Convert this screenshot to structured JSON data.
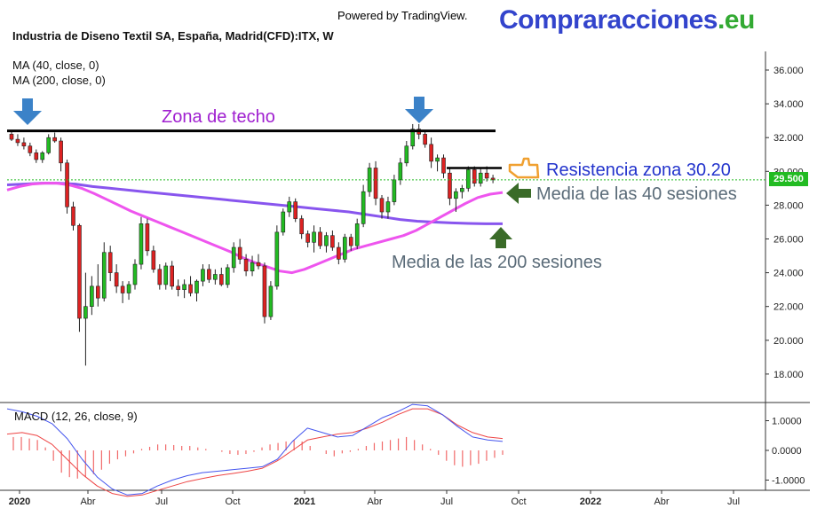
{
  "header": {
    "powered_by": "Powered by TradingView.",
    "brand_main": "Compraracciones",
    "brand_tld": ".eu",
    "title": "Industria de Diseno Textil SA, España, Madrid(CFD):ITX, W",
    "ma40_label": "MA (40, close, 0)",
    "ma200_label": "MA (200, close, 0)",
    "macd_label": "MACD (12, 26, close, 9)"
  },
  "annotations": {
    "zona_techo": "Zona de techo",
    "resistencia": "Resistencia zona 30.20",
    "media40": "Media de las 40 sesiones",
    "media200": "Media de las 200 sesiones"
  },
  "colors": {
    "up": "#22bb22",
    "down": "#dd2222",
    "ma40": "#ee55ee",
    "ma200": "#8855ee",
    "macd": "#4455ee",
    "signal": "#ee4444",
    "annotation_arrow_blue": "#3b82c8",
    "annotation_arrow_green": "#3a6b28",
    "hand_icon": "#f0a030"
  },
  "chart_data": {
    "type": "candlestick",
    "symbol": "ITX",
    "timeframe": "W",
    "price_axis": {
      "ticks": [
        "36.000",
        "34.000",
        "32.000",
        "30.000",
        "28.000",
        "26.000",
        "24.000",
        "22.000",
        "20.000",
        "18.000"
      ],
      "ylim": [
        16.5,
        37
      ]
    },
    "time_axis": {
      "labels": [
        "2020",
        "Abr",
        "Jul",
        "Oct",
        "2021",
        "Abr",
        "Jul",
        "Oct",
        "2022",
        "Abr",
        "Jul"
      ]
    },
    "last_price": "29.500",
    "resistance_level": 30.2,
    "roof_level": 32.4,
    "candles": [
      [
        32.2,
        32.4,
        31.8,
        31.9
      ],
      [
        31.9,
        32.2,
        31.5,
        31.7
      ],
      [
        31.7,
        32.0,
        31.3,
        31.5
      ],
      [
        31.5,
        31.7,
        30.9,
        31.1
      ],
      [
        31.1,
        31.3,
        30.5,
        30.7
      ],
      [
        30.7,
        31.2,
        30.5,
        31.1
      ],
      [
        31.1,
        32.2,
        31.0,
        32.0
      ],
      [
        32.0,
        32.3,
        31.7,
        31.8
      ],
      [
        31.8,
        32.0,
        30.0,
        30.5
      ],
      [
        30.5,
        30.7,
        27.5,
        27.9
      ],
      [
        27.9,
        28.2,
        26.5,
        26.8
      ],
      [
        26.8,
        26.9,
        20.5,
        21.3
      ],
      [
        21.3,
        24.0,
        18.5,
        22.0
      ],
      [
        22.0,
        23.8,
        21.5,
        23.2
      ],
      [
        23.2,
        24.5,
        22.0,
        22.5
      ],
      [
        22.5,
        25.8,
        22.3,
        25.2
      ],
      [
        25.2,
        25.6,
        23.5,
        24.0
      ],
      [
        24.0,
        24.5,
        22.8,
        23.2
      ],
      [
        23.2,
        23.5,
        22.2,
        22.8
      ],
      [
        22.8,
        23.5,
        22.4,
        23.3
      ],
      [
        23.3,
        24.8,
        23.0,
        24.5
      ],
      [
        24.5,
        27.3,
        24.2,
        26.9
      ],
      [
        26.9,
        27.2,
        25.0,
        25.3
      ],
      [
        25.3,
        25.6,
        24.0,
        24.2
      ],
      [
        24.2,
        24.5,
        23.0,
        23.3
      ],
      [
        23.3,
        24.6,
        23.0,
        24.4
      ],
      [
        24.4,
        24.7,
        23.0,
        23.2
      ],
      [
        23.2,
        23.6,
        22.6,
        23.0
      ],
      [
        23.0,
        23.6,
        22.5,
        23.3
      ],
      [
        23.3,
        23.8,
        22.6,
        22.8
      ],
      [
        22.8,
        23.6,
        22.3,
        23.5
      ],
      [
        23.5,
        24.5,
        23.2,
        24.2
      ],
      [
        24.2,
        24.5,
        23.4,
        23.6
      ],
      [
        23.6,
        24.2,
        23.3,
        23.9
      ],
      [
        23.9,
        24.3,
        23.2,
        23.3
      ],
      [
        23.3,
        24.5,
        23.1,
        24.3
      ],
      [
        24.3,
        25.8,
        24.0,
        25.5
      ],
      [
        25.5,
        26.0,
        24.5,
        24.8
      ],
      [
        24.8,
        25.1,
        23.8,
        24.1
      ],
      [
        24.1,
        25.0,
        23.8,
        24.6
      ],
      [
        24.6,
        25.1,
        24.2,
        24.4
      ],
      [
        24.4,
        24.6,
        21.0,
        21.4
      ],
      [
        21.4,
        23.5,
        21.2,
        23.2
      ],
      [
        23.2,
        26.8,
        23.0,
        26.4
      ],
      [
        26.4,
        27.8,
        26.2,
        27.6
      ],
      [
        27.6,
        28.5,
        27.3,
        28.2
      ],
      [
        28.2,
        28.4,
        27.0,
        27.2
      ],
      [
        27.2,
        27.4,
        26.0,
        26.3
      ],
      [
        26.3,
        26.5,
        25.5,
        25.8
      ],
      [
        25.8,
        26.8,
        25.2,
        26.4
      ],
      [
        26.4,
        26.7,
        25.4,
        25.6
      ],
      [
        25.6,
        26.4,
        25.2,
        26.2
      ],
      [
        26.2,
        26.5,
        25.3,
        25.5
      ],
      [
        25.5,
        25.8,
        24.5,
        24.8
      ],
      [
        24.8,
        26.3,
        24.6,
        26.1
      ],
      [
        26.1,
        26.3,
        25.3,
        25.6
      ],
      [
        25.6,
        27.2,
        25.4,
        26.9
      ],
      [
        26.9,
        29.2,
        26.7,
        28.8
      ],
      [
        28.8,
        30.5,
        28.5,
        30.2
      ],
      [
        30.2,
        30.6,
        28.0,
        28.4
      ],
      [
        28.4,
        28.6,
        27.2,
        27.6
      ],
      [
        27.6,
        28.5,
        27.2,
        28.2
      ],
      [
        28.2,
        29.8,
        28.0,
        29.5
      ],
      [
        29.5,
        30.8,
        29.2,
        30.5
      ],
      [
        30.5,
        31.8,
        30.3,
        31.5
      ],
      [
        31.5,
        32.8,
        31.3,
        32.5
      ],
      [
        32.5,
        32.8,
        31.9,
        32.2
      ],
      [
        32.2,
        32.4,
        31.4,
        31.6
      ],
      [
        31.6,
        32.0,
        30.2,
        30.6
      ],
      [
        30.6,
        31.0,
        30.0,
        30.8
      ],
      [
        30.8,
        31.0,
        29.6,
        29.9
      ],
      [
        29.9,
        30.2,
        28.0,
        28.4
      ],
      [
        28.4,
        29.0,
        27.6,
        28.8
      ],
      [
        28.8,
        29.2,
        28.4,
        29.0
      ],
      [
        29.0,
        30.3,
        28.8,
        30.1
      ],
      [
        30.1,
        30.3,
        29.1,
        29.3
      ],
      [
        29.3,
        30.2,
        29.1,
        29.9
      ],
      [
        29.9,
        30.3,
        29.4,
        29.6
      ],
      [
        29.6,
        29.8,
        29.3,
        29.5
      ]
    ],
    "ma40": [
      28.9,
      29.1,
      29.25,
      29.3,
      29.3,
      29.2,
      29.0,
      28.7,
      28.35,
      28.0,
      27.65,
      27.35,
      27.05,
      26.75,
      26.45,
      26.15,
      25.85,
      25.55,
      25.25,
      24.9,
      24.6,
      24.35,
      24.1,
      24.0,
      24.2,
      24.5,
      24.8,
      25.1,
      25.4,
      25.6,
      25.8,
      26.0,
      26.2,
      26.5,
      26.9,
      27.3,
      27.7,
      28.1,
      28.45,
      28.65,
      28.75
    ],
    "ma200": [
      29.2,
      29.25,
      29.3,
      29.3,
      29.25,
      29.1,
      29.0,
      28.9,
      28.8,
      28.7,
      28.6,
      28.5,
      28.4,
      28.3,
      28.2,
      28.1,
      28.0,
      27.9,
      27.8,
      27.7,
      27.6,
      27.45,
      27.3,
      27.15,
      27.05,
      27.0,
      26.95,
      26.92,
      26.9,
      26.9
    ],
    "macd_axis": {
      "ticks": [
        "1.0000",
        "0.0000",
        "-1.0000"
      ],
      "ylim": [
        -1.25,
        1.65
      ]
    },
    "macd": [
      1.4,
      1.3,
      1.15,
      0.9,
      0.4,
      -0.3,
      -0.9,
      -1.3,
      -1.5,
      -1.45,
      -1.2,
      -1.0,
      -0.85,
      -0.75,
      -0.7,
      -0.65,
      -0.6,
      -0.55,
      -0.3,
      0.3,
      0.75,
      0.6,
      0.45,
      0.5,
      0.8,
      1.1,
      1.3,
      1.55,
      1.5,
      1.2,
      0.8,
      0.45,
      0.35,
      0.3
    ],
    "signal": [
      0.55,
      0.6,
      0.5,
      0.2,
      -0.3,
      -0.8,
      -1.2,
      -1.45,
      -1.55,
      -1.5,
      -1.35,
      -1.2,
      -1.05,
      -0.95,
      -0.85,
      -0.78,
      -0.7,
      -0.6,
      -0.35,
      0.0,
      0.35,
      0.45,
      0.55,
      0.6,
      0.75,
      0.95,
      1.2,
      1.4,
      1.4,
      1.2,
      0.85,
      0.6,
      0.45,
      0.4
    ],
    "histogram": [
      0.45,
      0.45,
      0.4,
      0.35,
      0.1,
      -0.35,
      -0.75,
      -0.9,
      -0.95,
      -0.9,
      -0.8,
      -0.65,
      -0.45,
      -0.3,
      -0.2,
      -0.1,
      0.05,
      0.12,
      0.2,
      0.2,
      0.18,
      0.15,
      0.15,
      0.1,
      0.05,
      0.0,
      -0.05,
      -0.12,
      -0.15,
      -0.12,
      -0.05,
      0.1,
      0.2,
      0.25,
      0.3,
      0.35,
      0.3,
      0.15,
      0.0,
      -0.12,
      -0.2,
      -0.1,
      -0.05,
      0.05,
      0.15,
      0.25,
      0.3,
      0.35,
      0.4,
      0.45,
      0.35,
      0.2,
      0.05,
      -0.15,
      -0.35,
      -0.5,
      -0.55,
      -0.5,
      -0.45,
      -0.35,
      -0.25,
      -0.15
    ]
  }
}
